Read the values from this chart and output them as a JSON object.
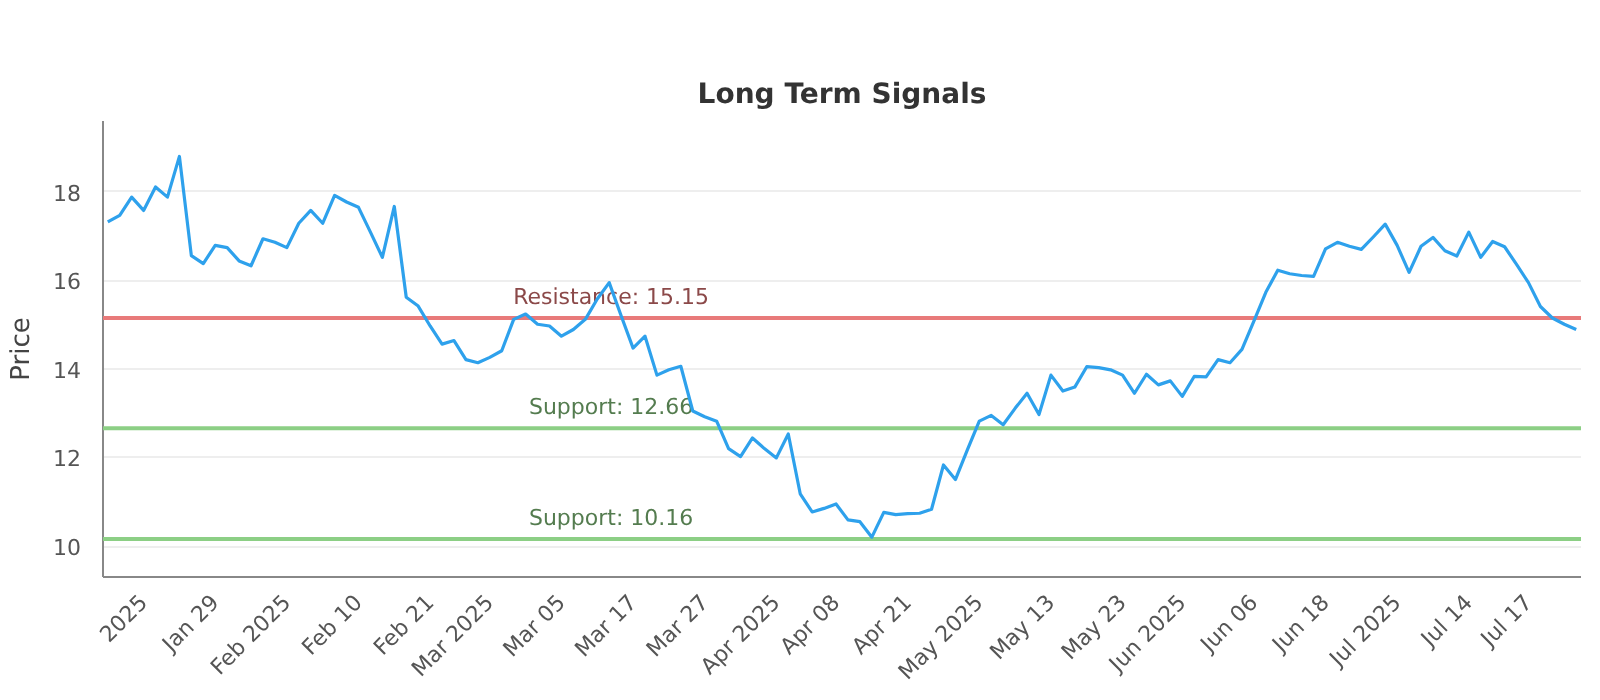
{
  "chart_data": {
    "type": "line",
    "title": "Long Term Signals",
    "ylabel": "Price",
    "categories": [
      null,
      null,
      null,
      "2025",
      null,
      null,
      null,
      null,
      null,
      "Jan 29",
      null,
      null,
      null,
      null,
      null,
      "Feb 2025",
      null,
      null,
      null,
      null,
      null,
      "Feb 10",
      null,
      null,
      null,
      null,
      null,
      "Feb 21",
      null,
      null,
      null,
      null,
      "Mar 2025",
      null,
      null,
      null,
      null,
      null,
      "Mar 05",
      null,
      null,
      null,
      null,
      null,
      "Mar 17",
      null,
      null,
      null,
      null,
      null,
      "Mar 27",
      null,
      null,
      null,
      null,
      null,
      "Apr 2025",
      null,
      null,
      null,
      null,
      "Apr 08",
      null,
      null,
      null,
      null,
      null,
      "Apr 21",
      null,
      null,
      null,
      null,
      null,
      "May 2025",
      null,
      null,
      null,
      null,
      null,
      "May 13",
      null,
      null,
      null,
      null,
      null,
      "May 23",
      null,
      null,
      null,
      null,
      "Jun 2025",
      null,
      null,
      null,
      null,
      null,
      "Jun 06",
      null,
      null,
      null,
      null,
      null,
      "Jun 18",
      null,
      null,
      null,
      null,
      null,
      "Jul 2025",
      null,
      null,
      null,
      null,
      null,
      "Jul 14",
      null,
      null,
      null,
      null,
      "Jul 17",
      null,
      null,
      null,
      null
    ],
    "series": [
      {
        "color": "#2ea1ec",
        "values": [
          17.32,
          17.47,
          17.88,
          17.58,
          18.11,
          17.88,
          18.8,
          16.56,
          16.38,
          16.79,
          16.74,
          16.44,
          16.33,
          16.94,
          16.86,
          16.74,
          17.29,
          17.58,
          17.29,
          17.92,
          17.77,
          17.65,
          17.09,
          16.52,
          17.67,
          15.62,
          15.42,
          14.97,
          14.56,
          14.64,
          14.21,
          14.14,
          14.26,
          14.41,
          15.12,
          15.24,
          15.01,
          14.97,
          14.74,
          14.89,
          15.12,
          15.58,
          15.95,
          15.2,
          14.47,
          14.74,
          13.86,
          13.98,
          14.06,
          13.05,
          12.92,
          12.82,
          12.2,
          12.02,
          12.44,
          12.2,
          11.99,
          12.53,
          11.18,
          10.77,
          10.85,
          10.95,
          10.59,
          10.55,
          10.2,
          10.76,
          10.71,
          10.73,
          10.74,
          10.83,
          11.83,
          11.5,
          12.17,
          12.82,
          12.95,
          12.74,
          13.11,
          13.45,
          12.97,
          13.86,
          13.5,
          13.59,
          14.05,
          14.03,
          13.98,
          13.86,
          13.45,
          13.88,
          13.64,
          13.73,
          13.38,
          13.83,
          13.82,
          14.21,
          14.14,
          14.44,
          15.08,
          15.73,
          16.23,
          16.15,
          16.11,
          16.09,
          16.71,
          16.86,
          16.77,
          16.7,
          16.98,
          17.27,
          16.79,
          16.18,
          16.77,
          16.97,
          16.67,
          16.55,
          17.09,
          16.52,
          16.88,
          16.76,
          16.36,
          15.95,
          15.41,
          15.15,
          15.01,
          14.89
        ]
      }
    ],
    "ylim": [
      9.3,
      19.6
    ],
    "yticks": [
      10,
      12,
      14,
      16,
      18
    ],
    "grid": "y",
    "marker": "none",
    "line_style": "solid",
    "ref_lines": [
      {
        "axis": "y",
        "value": 15.15,
        "label": "Resistance: 15.15",
        "color": "#e87a7a"
      },
      {
        "axis": "y",
        "value": 12.66,
        "label": "Support: 12.66",
        "color": "#8ccf85"
      },
      {
        "axis": "y",
        "value": 10.16,
        "label": "Support: 10.16",
        "color": "#8ccf85"
      }
    ]
  }
}
